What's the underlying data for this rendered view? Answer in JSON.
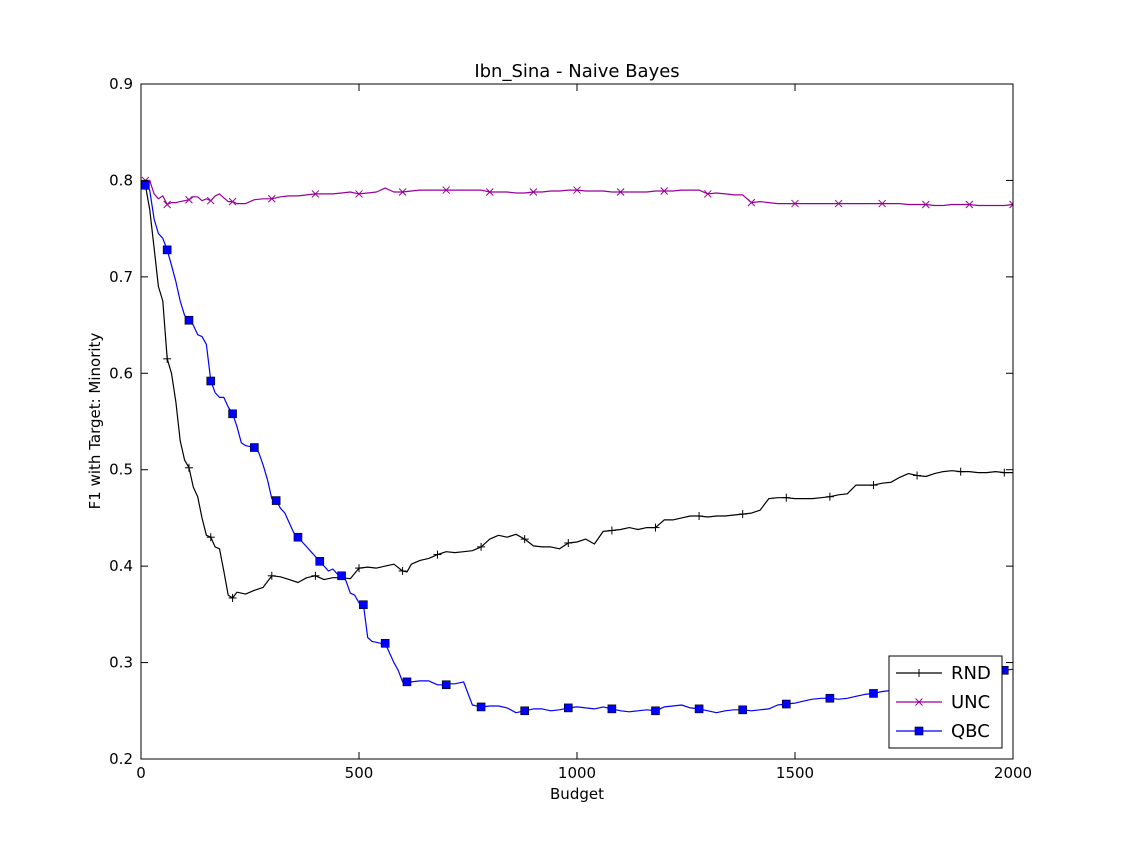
{
  "chart_data": {
    "type": "line",
    "title": "Ibn_Sina - Naive Bayes",
    "xlabel": "Budget",
    "ylabel": "F1 with Target: Minority",
    "xlim": [
      0,
      2000
    ],
    "ylim": [
      0.2,
      0.9
    ],
    "xticks": [
      0,
      500,
      1000,
      1500,
      2000
    ],
    "yticks": [
      0.2,
      0.3,
      0.4,
      0.5,
      0.6,
      0.7,
      0.8,
      0.9
    ],
    "xtick_labels": [
      "0",
      "500",
      "1000",
      "1500",
      "2000"
    ],
    "ytick_labels": [
      "0.2",
      "0.3",
      "0.4",
      "0.5",
      "0.6",
      "0.7",
      "0.8",
      "0.9"
    ],
    "grid": false,
    "legend_position": "lower-right",
    "series": [
      {
        "name": "RND",
        "color": "#000000",
        "marker": "plus",
        "x": [
          10,
          20,
          30,
          40,
          50,
          60,
          70,
          80,
          90,
          100,
          110,
          120,
          130,
          140,
          150,
          160,
          170,
          180,
          190,
          200,
          210,
          220,
          240,
          260,
          280,
          300,
          320,
          340,
          360,
          380,
          400,
          420,
          440,
          460,
          480,
          500,
          520,
          540,
          560,
          580,
          600,
          610,
          620,
          640,
          660,
          680,
          700,
          720,
          740,
          760,
          780,
          800,
          820,
          840,
          860,
          880,
          900,
          920,
          940,
          960,
          980,
          1000,
          1020,
          1040,
          1060,
          1080,
          1100,
          1120,
          1140,
          1160,
          1180,
          1200,
          1220,
          1240,
          1260,
          1280,
          1300,
          1320,
          1340,
          1360,
          1380,
          1400,
          1420,
          1440,
          1460,
          1480,
          1500,
          1520,
          1540,
          1560,
          1580,
          1600,
          1620,
          1640,
          1660,
          1680,
          1700,
          1720,
          1740,
          1760,
          1780,
          1800,
          1820,
          1840,
          1860,
          1880,
          1900,
          1920,
          1940,
          1960,
          1980,
          2000
        ],
        "y": [
          0.795,
          0.77,
          0.73,
          0.69,
          0.675,
          0.615,
          0.6,
          0.57,
          0.53,
          0.51,
          0.502,
          0.482,
          0.472,
          0.45,
          0.432,
          0.43,
          0.42,
          0.418,
          0.395,
          0.37,
          0.367,
          0.373,
          0.371,
          0.375,
          0.378,
          0.39,
          0.389,
          0.386,
          0.383,
          0.388,
          0.39,
          0.386,
          0.388,
          0.388,
          0.387,
          0.398,
          0.399,
          0.398,
          0.4,
          0.402,
          0.395,
          0.394,
          0.402,
          0.406,
          0.408,
          0.412,
          0.415,
          0.414,
          0.415,
          0.416,
          0.42,
          0.428,
          0.432,
          0.43,
          0.433,
          0.428,
          0.421,
          0.42,
          0.42,
          0.418,
          0.424,
          0.425,
          0.428,
          0.423,
          0.436,
          0.437,
          0.438,
          0.44,
          0.438,
          0.44,
          0.44,
          0.448,
          0.448,
          0.45,
          0.452,
          0.452,
          0.451,
          0.452,
          0.452,
          0.453,
          0.454,
          0.455,
          0.458,
          0.47,
          0.471,
          0.471,
          0.47,
          0.47,
          0.47,
          0.471,
          0.472,
          0.474,
          0.475,
          0.484,
          0.484,
          0.484,
          0.486,
          0.487,
          0.492,
          0.496,
          0.494,
          0.493,
          0.496,
          0.498,
          0.499,
          0.498,
          0.498,
          0.497,
          0.497,
          0.498,
          0.497,
          0.497
        ]
      },
      {
        "name": "UNC",
        "color": "#990099",
        "marker": "x",
        "x": [
          10,
          20,
          30,
          40,
          50,
          60,
          70,
          80,
          90,
          100,
          110,
          120,
          130,
          140,
          150,
          160,
          170,
          180,
          190,
          200,
          210,
          220,
          240,
          260,
          280,
          300,
          320,
          340,
          360,
          380,
          400,
          420,
          440,
          460,
          480,
          500,
          520,
          540,
          560,
          580,
          600,
          620,
          640,
          660,
          680,
          700,
          720,
          740,
          760,
          780,
          800,
          820,
          840,
          860,
          880,
          900,
          920,
          940,
          960,
          980,
          1000,
          1020,
          1040,
          1060,
          1080,
          1100,
          1120,
          1140,
          1160,
          1180,
          1200,
          1220,
          1240,
          1260,
          1280,
          1300,
          1320,
          1340,
          1360,
          1380,
          1400,
          1420,
          1440,
          1460,
          1480,
          1500,
          1520,
          1540,
          1560,
          1580,
          1600,
          1620,
          1640,
          1660,
          1680,
          1700,
          1720,
          1740,
          1760,
          1780,
          1800,
          1820,
          1840,
          1860,
          1880,
          1900,
          1920,
          1940,
          1960,
          1980,
          2000
        ],
        "y": [
          0.8,
          0.8,
          0.786,
          0.781,
          0.784,
          0.775,
          0.777,
          0.777,
          0.778,
          0.779,
          0.78,
          0.783,
          0.783,
          0.779,
          0.781,
          0.779,
          0.784,
          0.786,
          0.782,
          0.778,
          0.778,
          0.776,
          0.776,
          0.78,
          0.781,
          0.781,
          0.783,
          0.784,
          0.784,
          0.785,
          0.786,
          0.786,
          0.786,
          0.787,
          0.788,
          0.786,
          0.787,
          0.788,
          0.792,
          0.788,
          0.788,
          0.789,
          0.79,
          0.79,
          0.79,
          0.79,
          0.79,
          0.79,
          0.79,
          0.79,
          0.788,
          0.788,
          0.788,
          0.787,
          0.787,
          0.788,
          0.788,
          0.789,
          0.789,
          0.79,
          0.79,
          0.789,
          0.789,
          0.789,
          0.788,
          0.788,
          0.788,
          0.788,
          0.788,
          0.789,
          0.789,
          0.789,
          0.79,
          0.79,
          0.79,
          0.786,
          0.787,
          0.786,
          0.785,
          0.785,
          0.777,
          0.778,
          0.777,
          0.776,
          0.776,
          0.776,
          0.776,
          0.776,
          0.776,
          0.776,
          0.776,
          0.776,
          0.776,
          0.776,
          0.776,
          0.776,
          0.776,
          0.776,
          0.775,
          0.775,
          0.775,
          0.774,
          0.774,
          0.775,
          0.775,
          0.775,
          0.774,
          0.774,
          0.774,
          0.774,
          0.775
        ]
      },
      {
        "name": "QBC",
        "color": "#0000ff",
        "marker": "square",
        "x": [
          10,
          20,
          30,
          40,
          50,
          60,
          70,
          80,
          90,
          100,
          110,
          120,
          130,
          140,
          150,
          160,
          170,
          180,
          190,
          200,
          210,
          220,
          230,
          240,
          250,
          260,
          270,
          280,
          290,
          300,
          310,
          320,
          330,
          340,
          350,
          360,
          370,
          380,
          390,
          400,
          410,
          420,
          430,
          440,
          450,
          460,
          470,
          480,
          490,
          500,
          510,
          520,
          530,
          540,
          550,
          560,
          570,
          580,
          590,
          600,
          610,
          620,
          640,
          660,
          680,
          700,
          710,
          720,
          740,
          760,
          780,
          800,
          820,
          840,
          860,
          880,
          900,
          920,
          940,
          960,
          980,
          1000,
          1020,
          1040,
          1060,
          1080,
          1100,
          1120,
          1140,
          1160,
          1180,
          1200,
          1220,
          1240,
          1260,
          1280,
          1300,
          1320,
          1340,
          1360,
          1380,
          1400,
          1420,
          1440,
          1460,
          1480,
          1500,
          1520,
          1540,
          1560,
          1580,
          1600,
          1620,
          1640,
          1660,
          1680,
          1700,
          1720,
          1740,
          1760,
          1780,
          1800,
          1820,
          1840,
          1860,
          1880,
          1900,
          1920,
          1940,
          1960,
          1980,
          2000
        ],
        "y": [
          0.795,
          0.79,
          0.76,
          0.745,
          0.74,
          0.728,
          0.712,
          0.695,
          0.675,
          0.66,
          0.655,
          0.65,
          0.64,
          0.638,
          0.63,
          0.592,
          0.58,
          0.575,
          0.575,
          0.565,
          0.558,
          0.545,
          0.528,
          0.525,
          0.524,
          0.523,
          0.518,
          0.505,
          0.49,
          0.47,
          0.468,
          0.46,
          0.455,
          0.445,
          0.435,
          0.43,
          0.425,
          0.42,
          0.415,
          0.41,
          0.405,
          0.4,
          0.395,
          0.397,
          0.392,
          0.39,
          0.385,
          0.372,
          0.37,
          0.362,
          0.36,
          0.326,
          0.322,
          0.321,
          0.32,
          0.32,
          0.31,
          0.3,
          0.292,
          0.28,
          0.28,
          0.28,
          0.281,
          0.281,
          0.277,
          0.277,
          0.278,
          0.278,
          0.28,
          0.256,
          0.254,
          0.255,
          0.255,
          0.253,
          0.248,
          0.25,
          0.252,
          0.252,
          0.25,
          0.251,
          0.253,
          0.254,
          0.253,
          0.252,
          0.254,
          0.252,
          0.25,
          0.249,
          0.25,
          0.251,
          0.25,
          0.254,
          0.255,
          0.256,
          0.253,
          0.252,
          0.25,
          0.248,
          0.25,
          0.251,
          0.251,
          0.25,
          0.251,
          0.252,
          0.256,
          0.257,
          0.258,
          0.26,
          0.262,
          0.263,
          0.263,
          0.262,
          0.263,
          0.265,
          0.267,
          0.268,
          0.27,
          0.271,
          0.272,
          0.273,
          0.275,
          0.277,
          0.279,
          0.28,
          0.282,
          0.284,
          0.286,
          0.287,
          0.289,
          0.29,
          0.292,
          0.293
        ]
      }
    ]
  }
}
